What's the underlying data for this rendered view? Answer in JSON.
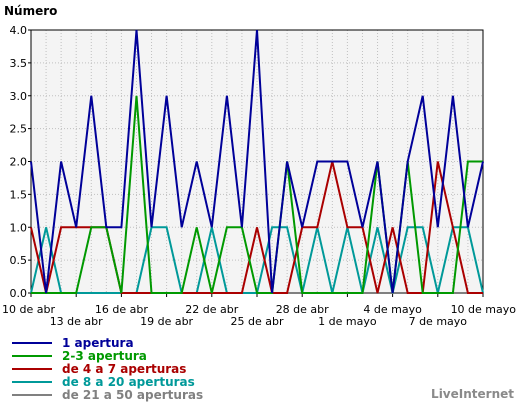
{
  "chart_data": {
    "type": "line",
    "ylabel": "Número",
    "ylim": [
      0,
      4
    ],
    "yticks": [
      "0.0",
      "0.5",
      "1.0",
      "1.5",
      "2.0",
      "2.5",
      "3.0",
      "3.5",
      "4.0"
    ],
    "xtick_labels": [
      "10 de abr",
      "13 de abr",
      "16 de abr",
      "19 de abr",
      "22 de abr",
      "25 de abr",
      "28 de abr",
      "1 de mayo",
      "4 de mayo",
      "7 de mayo",
      "10 de mayo"
    ],
    "grid": true,
    "series": [
      {
        "name": "1 apertura",
        "color": "#000099",
        "values": [
          2,
          0,
          2,
          1,
          3,
          1,
          1,
          4,
          1,
          3,
          1,
          2,
          1,
          3,
          1,
          4,
          0,
          2,
          1,
          2,
          2,
          2,
          1,
          2,
          0,
          2,
          3,
          1,
          3,
          1,
          2
        ]
      },
      {
        "name": "2-3 apertura",
        "color": "#009900",
        "values": [
          0,
          0,
          0,
          0,
          1,
          1,
          0,
          3,
          0,
          0,
          0,
          1,
          0,
          1,
          1,
          0,
          0,
          2,
          0,
          0,
          0,
          0,
          0,
          2,
          0,
          2,
          0,
          0,
          0,
          2,
          2
        ]
      },
      {
        "name": "de 4 a 7 aperturas",
        "color": "#aa0000",
        "values": [
          1,
          0,
          1,
          1,
          1,
          1,
          0,
          0,
          0,
          0,
          0,
          0,
          0,
          0,
          0,
          1,
          0,
          0,
          1,
          1,
          2,
          1,
          1,
          0,
          1,
          0,
          0,
          2,
          1,
          0,
          0
        ]
      },
      {
        "name": "de 8 a 20 aperturas",
        "color": "#009999",
        "values": [
          0,
          1,
          0,
          0,
          0,
          0,
          0,
          0,
          1,
          1,
          0,
          0,
          1,
          0,
          0,
          0,
          1,
          1,
          0,
          1,
          0,
          1,
          0,
          1,
          0,
          1,
          1,
          0,
          1,
          1,
          0
        ]
      },
      {
        "name": "de 21 a 50 aperturas",
        "color": "#808080",
        "values": [
          0,
          0,
          0,
          0,
          0,
          0,
          0,
          0,
          0,
          0,
          0,
          0,
          0,
          0,
          0,
          0,
          0,
          0,
          0,
          0,
          0,
          0,
          0,
          0,
          0,
          0,
          0,
          0,
          0,
          0,
          0
        ]
      }
    ]
  },
  "brand": "LiveInternet"
}
